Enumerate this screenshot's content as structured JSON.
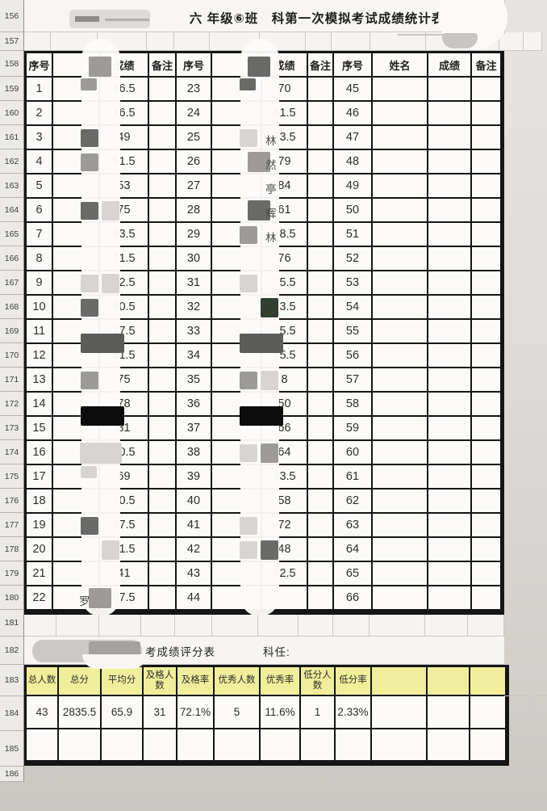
{
  "title": {
    "text": "六 年级⑥班　科第一次模拟考试成绩统计表"
  },
  "gutter_rows": [
    "156",
    "157",
    "158",
    "159",
    "160",
    "161",
    "162",
    "163",
    "164",
    "165",
    "166",
    "167",
    "168",
    "169",
    "170",
    "171",
    "172",
    "173",
    "174",
    "175",
    "176",
    "177",
    "178",
    "179",
    "180",
    "181",
    "182",
    "183",
    "184",
    "185",
    "186"
  ],
  "main_table": {
    "headers": {
      "no": "序号",
      "name": "姓名",
      "score": "成绩",
      "note": "备注"
    },
    "groups": [
      {
        "name_header_censored": true,
        "header_censor": "mid:c",
        "rows": [
          {
            "no": "1",
            "name": "",
            "score": "66.5",
            "note": "",
            "censor": [
              "mid:lt"
            ]
          },
          {
            "no": "2",
            "name": "",
            "score": "76.5",
            "note": "",
            "censor": []
          },
          {
            "no": "3",
            "name": "",
            "score": "49",
            "note": "",
            "censor": [
              "dark:l"
            ]
          },
          {
            "no": "4",
            "name": "",
            "score": "51.5",
            "note": "",
            "censor": [
              "mid:l"
            ]
          },
          {
            "no": "5",
            "name": "",
            "score": "53",
            "note": "",
            "censor": []
          },
          {
            "no": "6",
            "name": "",
            "score": "75",
            "note": "",
            "censor": [
              "dark:l",
              "light:r"
            ]
          },
          {
            "no": "7",
            "name": "",
            "score": "63.5",
            "note": "",
            "censor": []
          },
          {
            "no": "8",
            "name": "",
            "score": "71.5",
            "note": "",
            "censor": []
          },
          {
            "no": "9",
            "name": "",
            "score": "52.5",
            "note": "",
            "censor": [
              "light:l",
              "light:r"
            ]
          },
          {
            "no": "10",
            "name": "",
            "score": "80.5",
            "note": "",
            "censor": [
              "dark:l"
            ]
          },
          {
            "no": "11",
            "name": "",
            "score": "77.5",
            "note": "",
            "censor": [
              "darkwide:b"
            ]
          },
          {
            "no": "12",
            "name": "",
            "score": "81.5",
            "note": "",
            "censor": []
          },
          {
            "no": "13",
            "name": "",
            "score": "75",
            "note": "",
            "censor": [
              "mid:l"
            ]
          },
          {
            "no": "14",
            "name": "",
            "score": "78",
            "note": "",
            "censor": [
              "black:b"
            ]
          },
          {
            "no": "15",
            "name": "",
            "score": "81",
            "note": "",
            "censor": []
          },
          {
            "no": "16",
            "name": "",
            "score": "70.5",
            "note": "",
            "censor": [
              "light:f"
            ]
          },
          {
            "no": "17",
            "name": "",
            "score": "69",
            "note": "",
            "censor": [
              "light:lt"
            ]
          },
          {
            "no": "18",
            "name": "",
            "score": "70.5",
            "note": "",
            "censor": []
          },
          {
            "no": "19",
            "name": "",
            "score": "57.5",
            "note": "",
            "censor": [
              "dark:l"
            ]
          },
          {
            "no": "20",
            "name": "",
            "score": "71.5",
            "note": "",
            "censor": [
              "light:r"
            ]
          },
          {
            "no": "21",
            "name": "",
            "score": "41",
            "note": "",
            "censor": []
          },
          {
            "no": "22",
            "name": "",
            "score": "67.5",
            "note": "",
            "censor": [
              "mid:c"
            ],
            "partial": "罗:l"
          }
        ]
      },
      {
        "name_header_censored": true,
        "header_censor": "dark:c",
        "rows": [
          {
            "no": "23",
            "name": "",
            "score": "70",
            "note": "",
            "censor": [
              "dark:lt"
            ]
          },
          {
            "no": "24",
            "name": "",
            "score": "41.5",
            "note": "",
            "censor": []
          },
          {
            "no": "25",
            "name": "",
            "score": "73.5",
            "note": "",
            "censor": [
              "light:l"
            ],
            "partial": "林:r"
          },
          {
            "no": "26",
            "name": "",
            "score": "79",
            "note": "",
            "censor": [
              "mid:c"
            ],
            "partial": "然:r"
          },
          {
            "no": "27",
            "name": "",
            "score": "84",
            "note": "",
            "censor": [],
            "partial": "亭:r"
          },
          {
            "no": "28",
            "name": "",
            "score": "61",
            "note": "",
            "censor": [
              "dark:c"
            ],
            "partial": "辉:r"
          },
          {
            "no": "29",
            "name": "",
            "score": "78.5",
            "note": "",
            "censor": [
              "mid:l"
            ],
            "partial": "林:r"
          },
          {
            "no": "30",
            "name": "",
            "score": "76",
            "note": "",
            "censor": []
          },
          {
            "no": "31",
            "name": "",
            "score": "75.5",
            "note": "",
            "censor": [
              "light:l"
            ]
          },
          {
            "no": "32",
            "name": "",
            "score": "63.5",
            "note": "",
            "censor": [
              "verydark:r"
            ]
          },
          {
            "no": "33",
            "name": "",
            "score": "55.5",
            "note": "",
            "censor": [
              "darkwide:b"
            ]
          },
          {
            "no": "34",
            "name": "",
            "score": "75.5",
            "note": "",
            "censor": []
          },
          {
            "no": "35",
            "name": "",
            "score": "8",
            "note": "",
            "censor": [
              "mid:l",
              "light:r"
            ]
          },
          {
            "no": "36",
            "name": "",
            "score": "50",
            "note": "",
            "censor": [
              "black:b"
            ]
          },
          {
            "no": "37",
            "name": "",
            "score": "66",
            "note": "",
            "censor": []
          },
          {
            "no": "38",
            "name": "",
            "score": "64",
            "note": "",
            "censor": [
              "light:l",
              "mid:r"
            ]
          },
          {
            "no": "39",
            "name": "",
            "score": "83.5",
            "note": "",
            "censor": []
          },
          {
            "no": "40",
            "name": "",
            "score": "58",
            "note": "",
            "censor": []
          },
          {
            "no": "41",
            "name": "",
            "score": "72",
            "note": "",
            "censor": [
              "light:l"
            ]
          },
          {
            "no": "42",
            "name": "",
            "score": "48",
            "note": "",
            "censor": [
              "light:l",
              "dark:r"
            ]
          },
          {
            "no": "43",
            "name": "",
            "score": "72.5",
            "note": "",
            "censor": []
          },
          {
            "no": "44",
            "name": "",
            "score": "",
            "note": "",
            "censor": []
          }
        ]
      },
      {
        "name_header_censored": false,
        "rows": [
          {
            "no": "45",
            "name": "",
            "score": "",
            "note": ""
          },
          {
            "no": "46",
            "name": "",
            "score": "",
            "note": ""
          },
          {
            "no": "47",
            "name": "",
            "score": "",
            "note": ""
          },
          {
            "no": "48",
            "name": "",
            "score": "",
            "note": ""
          },
          {
            "no": "49",
            "name": "",
            "score": "",
            "note": ""
          },
          {
            "no": "50",
            "name": "",
            "score": "",
            "note": ""
          },
          {
            "no": "51",
            "name": "",
            "score": "",
            "note": ""
          },
          {
            "no": "52",
            "name": "",
            "score": "",
            "note": ""
          },
          {
            "no": "53",
            "name": "",
            "score": "",
            "note": ""
          },
          {
            "no": "54",
            "name": "",
            "score": "",
            "note": ""
          },
          {
            "no": "55",
            "name": "",
            "score": "",
            "note": ""
          },
          {
            "no": "56",
            "name": "",
            "score": "",
            "note": ""
          },
          {
            "no": "57",
            "name": "",
            "score": "",
            "note": ""
          },
          {
            "no": "58",
            "name": "",
            "score": "",
            "note": ""
          },
          {
            "no": "59",
            "name": "",
            "score": "",
            "note": ""
          },
          {
            "no": "60",
            "name": "",
            "score": "",
            "note": ""
          },
          {
            "no": "61",
            "name": "",
            "score": "",
            "note": ""
          },
          {
            "no": "62",
            "name": "",
            "score": "",
            "note": ""
          },
          {
            "no": "63",
            "name": "",
            "score": "",
            "note": ""
          },
          {
            "no": "64",
            "name": "",
            "score": "",
            "note": ""
          },
          {
            "no": "65",
            "name": "",
            "score": "",
            "note": ""
          },
          {
            "no": "66",
            "name": "",
            "score": "",
            "note": ""
          }
        ]
      }
    ]
  },
  "summary": {
    "caption": "考成绩评分表",
    "teacher_label": "科任:",
    "headers": [
      "总人数",
      "总分",
      "平均分",
      "及格人数",
      "及格率",
      "优秀人数",
      "优秀率",
      "低分人数",
      "低分率",
      "",
      "",
      ""
    ],
    "values": [
      "43",
      "2835.5",
      "65.9",
      "31",
      "72.1%",
      "5",
      "11.6%",
      "1",
      "2.33%",
      "",
      "",
      ""
    ]
  },
  "colors": {
    "summary_header_bg": "#f1ee9b",
    "table_border": "#151515",
    "cell_bg": "#fbfaf7",
    "gutter_bg": "#ebeae7"
  }
}
